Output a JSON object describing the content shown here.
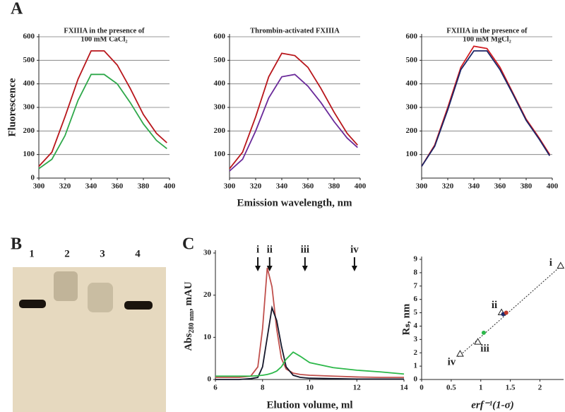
{
  "chart_data": [
    {
      "type": "line",
      "panel": "A",
      "title": [
        "FXIIIA in the presence of",
        "100 mM CaCl₂"
      ],
      "title_color": "#2ea84a",
      "ylabel": "Fluorescence",
      "x": [
        300,
        310,
        320,
        330,
        340,
        350,
        360,
        370,
        380,
        390,
        398
      ],
      "series": [
        {
          "color": "#b8161b",
          "values": [
            50,
            110,
            260,
            420,
            540,
            540,
            480,
            380,
            270,
            190,
            150
          ]
        },
        {
          "color": "#2ea84a",
          "values": [
            40,
            80,
            180,
            330,
            440,
            440,
            400,
            320,
            230,
            160,
            125
          ]
        }
      ],
      "xlim": [
        300,
        400
      ],
      "xticks": [
        300,
        320,
        340,
        360,
        380,
        400
      ],
      "ylim": [
        0,
        600
      ],
      "yticks": [
        0,
        100,
        200,
        300,
        400,
        500,
        600
      ],
      "grid": true
    },
    {
      "type": "line",
      "title": [
        "Thrombin-activated FXIIIA"
      ],
      "title_color": "#6a2a9a",
      "xlabel": "Emission wavelength, nm",
      "x": [
        300,
        310,
        320,
        330,
        340,
        350,
        360,
        370,
        380,
        390,
        398
      ],
      "series": [
        {
          "color": "#b8161b",
          "values": [
            40,
            110,
            260,
            430,
            530,
            520,
            470,
            380,
            280,
            190,
            140
          ]
        },
        {
          "color": "#6a2a9a",
          "values": [
            30,
            80,
            200,
            340,
            430,
            440,
            390,
            320,
            240,
            170,
            130
          ]
        }
      ],
      "xlim": [
        300,
        400
      ],
      "xticks": [
        300,
        320,
        340,
        360,
        380,
        400
      ],
      "ylim": [
        0,
        600
      ],
      "yticks": [
        100,
        200,
        300,
        400,
        500,
        600
      ],
      "grid": true
    },
    {
      "type": "line",
      "title": [
        "FXIIIA in the presence of",
        "100 mM MgCl₂"
      ],
      "title_color": "#1b2466",
      "x": [
        300,
        310,
        320,
        330,
        340,
        350,
        360,
        370,
        380,
        390,
        398
      ],
      "series": [
        {
          "color": "#d01a1f",
          "values": [
            50,
            140,
            300,
            470,
            560,
            550,
            470,
            360,
            250,
            170,
            100
          ]
        },
        {
          "color": "#1b2466",
          "values": [
            50,
            135,
            290,
            460,
            540,
            540,
            460,
            355,
            245,
            165,
            95
          ]
        }
      ],
      "xlim": [
        300,
        400
      ],
      "xticks": [
        300,
        320,
        340,
        360,
        380,
        400
      ],
      "ylim": [
        0,
        600
      ],
      "yticks": [
        100,
        200,
        300,
        400,
        500,
        600
      ],
      "grid": true
    },
    {
      "type": "gel",
      "panel": "B",
      "categories": [
        "1",
        "2",
        "3",
        "4"
      ]
    },
    {
      "type": "line",
      "panel": "C",
      "ylabel": [
        "Abs",
        "280 nm",
        ", mAU"
      ],
      "xlabel": "Elution volume, ml",
      "x": [
        6,
        7,
        7.5,
        7.8,
        8,
        8.2,
        8.4,
        8.6,
        8.8,
        9,
        9.3,
        9.6,
        10,
        11,
        12,
        13,
        14
      ],
      "series": [
        {
          "color": "#c0504d",
          "values": [
            0.5,
            0.5,
            0.8,
            3,
            12,
            26.5,
            22,
            12,
            5,
            2.5,
            1.5,
            1.2,
            1,
            0.8,
            0.6,
            0.5,
            0.5
          ]
        },
        {
          "color": "#15172b",
          "values": [
            0,
            0,
            0.2,
            0.5,
            3,
            10,
            17,
            14,
            8,
            3,
            1,
            0.5,
            0.3,
            0.2,
            0.1,
            0.1,
            0.1
          ]
        },
        {
          "color": "#2db84a",
          "values": [
            0.8,
            0.8,
            0.8,
            0.9,
            1,
            1.2,
            1.5,
            2,
            3,
            4.8,
            6.5,
            5.5,
            4,
            2.8,
            2.2,
            1.8,
            1.3
          ]
        }
      ],
      "annotations": [
        {
          "label": "i",
          "x": 7.8
        },
        {
          "label": "ii",
          "x": 8.3
        },
        {
          "label": "iii",
          "x": 9.8
        },
        {
          "label": "iv",
          "x": 11.9
        }
      ],
      "xlim": [
        6,
        14
      ],
      "xticks": [
        6,
        8,
        10,
        12,
        14
      ],
      "ylim": [
        0,
        30
      ],
      "yticks": [
        0,
        10,
        20,
        30
      ],
      "grid": false
    },
    {
      "type": "scatter",
      "ylabel": "Rₛ, nm",
      "xlabel": "erf⁻¹(1-σ)",
      "series": [
        {
          "marker": "triangle",
          "color": "#ffffff",
          "x": [
            2.35,
            1.35,
            0.95,
            0.65
          ],
          "values": [
            8.5,
            5.0,
            2.8,
            1.9
          ],
          "labels": [
            "i",
            "ii",
            "iii",
            "iv"
          ]
        },
        {
          "marker": "circle",
          "color": "#1f2a6b",
          "x": [
            1.38
          ],
          "values": [
            4.9
          ]
        },
        {
          "marker": "circle",
          "color": "#c0392b",
          "x": [
            1.43
          ],
          "values": [
            5.0
          ]
        },
        {
          "marker": "circle",
          "color": "#2db84a",
          "x": [
            1.05
          ],
          "values": [
            3.5
          ]
        }
      ],
      "fit": {
        "x": [
          0.62,
          2.38
        ],
        "values": [
          1.7,
          8.6
        ]
      },
      "xlim": [
        0,
        2.4
      ],
      "xticks": [
        0,
        0.5,
        1,
        1.5,
        2
      ],
      "ylim": [
        0,
        9
      ],
      "yticks": [
        0,
        1,
        2,
        3,
        4,
        5,
        6,
        7,
        8,
        9
      ],
      "grid": false
    }
  ]
}
